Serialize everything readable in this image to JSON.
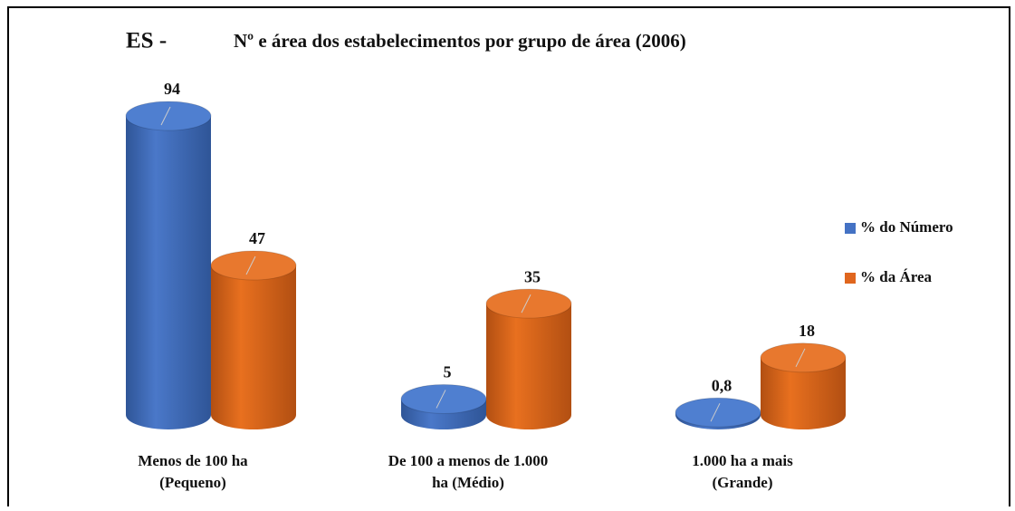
{
  "chart_data": {
    "type": "bar3d",
    "title_prefix": "ES -",
    "title": "Nº e área dos estabelecimentos por grupo de área (2006)",
    "categories": [
      [
        "Menos de 100 ha",
        "(Pequeno)"
      ],
      [
        "De 100 a menos de 1.000",
        "ha (Médio)"
      ],
      [
        "1.000 ha a mais",
        "(Grande)"
      ]
    ],
    "series": [
      {
        "name": "% do Número",
        "color": "#4472c4",
        "values": [
          94,
          5,
          0.8
        ],
        "value_labels": [
          "94",
          "5",
          "0,8"
        ]
      },
      {
        "name": "% da Área",
        "color": "#e0661e",
        "values": [
          47,
          35,
          18
        ]
      }
    ],
    "legend": "right"
  }
}
